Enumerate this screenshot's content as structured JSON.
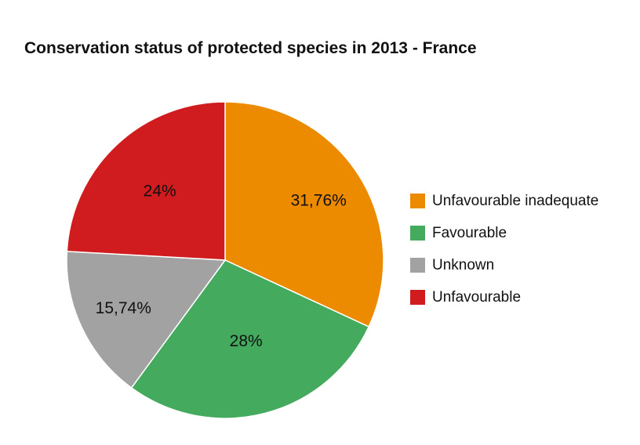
{
  "chart_data": {
    "type": "pie",
    "title": "Conservation status of protected species in 2013 - France",
    "slices": [
      {
        "name": "Unfavourable inadequate",
        "value": 31.76,
        "label": "31,76%",
        "color": "#ec8a00"
      },
      {
        "name": "Favourable",
        "value": 28,
        "label": "28%",
        "color": "#43aa5e"
      },
      {
        "name": "Unknown",
        "value": 15.74,
        "label": "15,74%",
        "color": "#a2a2a2"
      },
      {
        "name": "Unfavourable",
        "value": 24,
        "label": "24%",
        "color": "#d01c1f"
      }
    ],
    "start_angle": "12 o'clock",
    "direction": "clockwise",
    "legend_position": "right"
  }
}
